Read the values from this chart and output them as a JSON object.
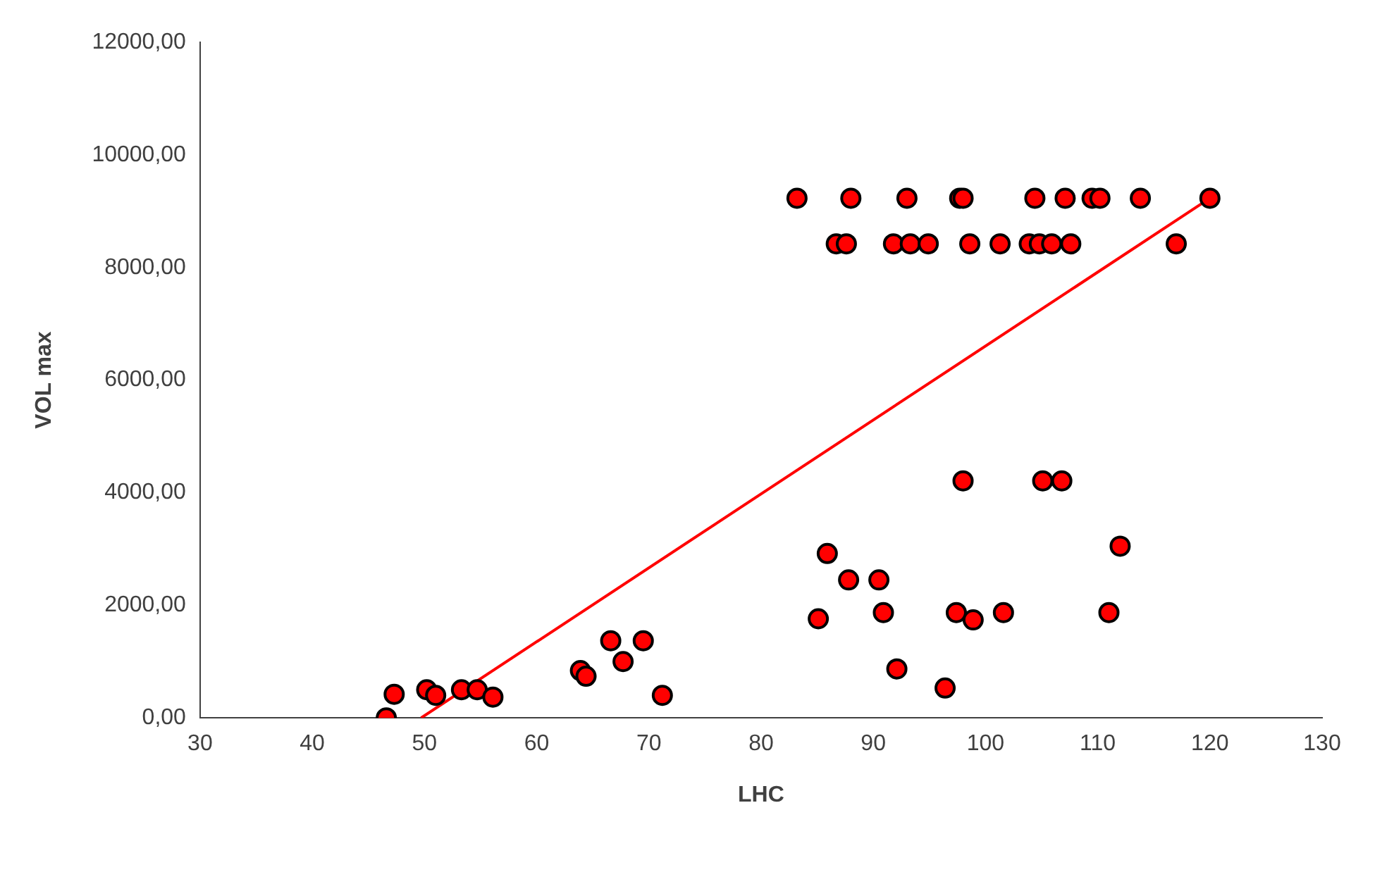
{
  "chart_data": {
    "type": "scatter",
    "xlabel": "LHC",
    "ylabel": "VOL max",
    "xlim": [
      30,
      130
    ],
    "xticks": [
      30,
      40,
      50,
      60,
      70,
      80,
      90,
      100,
      110,
      120,
      130
    ],
    "ylim": [
      0,
      12000
    ],
    "yticks": [
      {
        "value": 0,
        "label": "0,00"
      },
      {
        "value": 2000,
        "label": "2000,00"
      },
      {
        "value": 4000,
        "label": "4000,00"
      },
      {
        "value": 6000,
        "label": "6000,00"
      },
      {
        "value": 8000,
        "label": "8000,00"
      },
      {
        "value": 10000,
        "label": "10000,00"
      },
      {
        "value": 12000,
        "label": "12000,00"
      }
    ],
    "grid": false,
    "legend": false,
    "series": [
      {
        "type": "scatter",
        "marker": "circle",
        "color": "#ff0000",
        "x": [
          46.6,
          47.3,
          50.2,
          51,
          53.3,
          54.7,
          56.1,
          63.9,
          64.4,
          66.6,
          67.7,
          69.5,
          71.2,
          83.2,
          88.0,
          93.0,
          97.7,
          98.0,
          104.4,
          107.1,
          109.5,
          110.2,
          113.8,
          120.0,
          86.7,
          87.6,
          91.8,
          93.3,
          94.9,
          98.6,
          101.3,
          103.9,
          104.8,
          105.9,
          107.6,
          117.0,
          98.0,
          105.1,
          106.8,
          85.9,
          87.8,
          90.5,
          112.0,
          85.1,
          90.9,
          97.4,
          98.9,
          101.6,
          111.0,
          92.1,
          96.4
        ],
        "values": [
          0,
          420,
          500,
          400,
          500,
          500,
          370,
          840,
          740,
          1370,
          1000,
          1370,
          400,
          9230,
          9230,
          9230,
          9230,
          9230,
          9230,
          9230,
          9230,
          9230,
          9230,
          9230,
          8420,
          8420,
          8420,
          8420,
          8420,
          8420,
          8420,
          8420,
          8420,
          8420,
          8420,
          8420,
          4210,
          4210,
          4210,
          2920,
          2450,
          2450,
          3050,
          1760,
          1870,
          1870,
          1740,
          1870,
          1870,
          870,
          530
        ]
      },
      {
        "type": "line",
        "color": "#ff0000",
        "x": [
          49.7,
          120
        ],
        "values": [
          0,
          9230
        ]
      }
    ]
  }
}
